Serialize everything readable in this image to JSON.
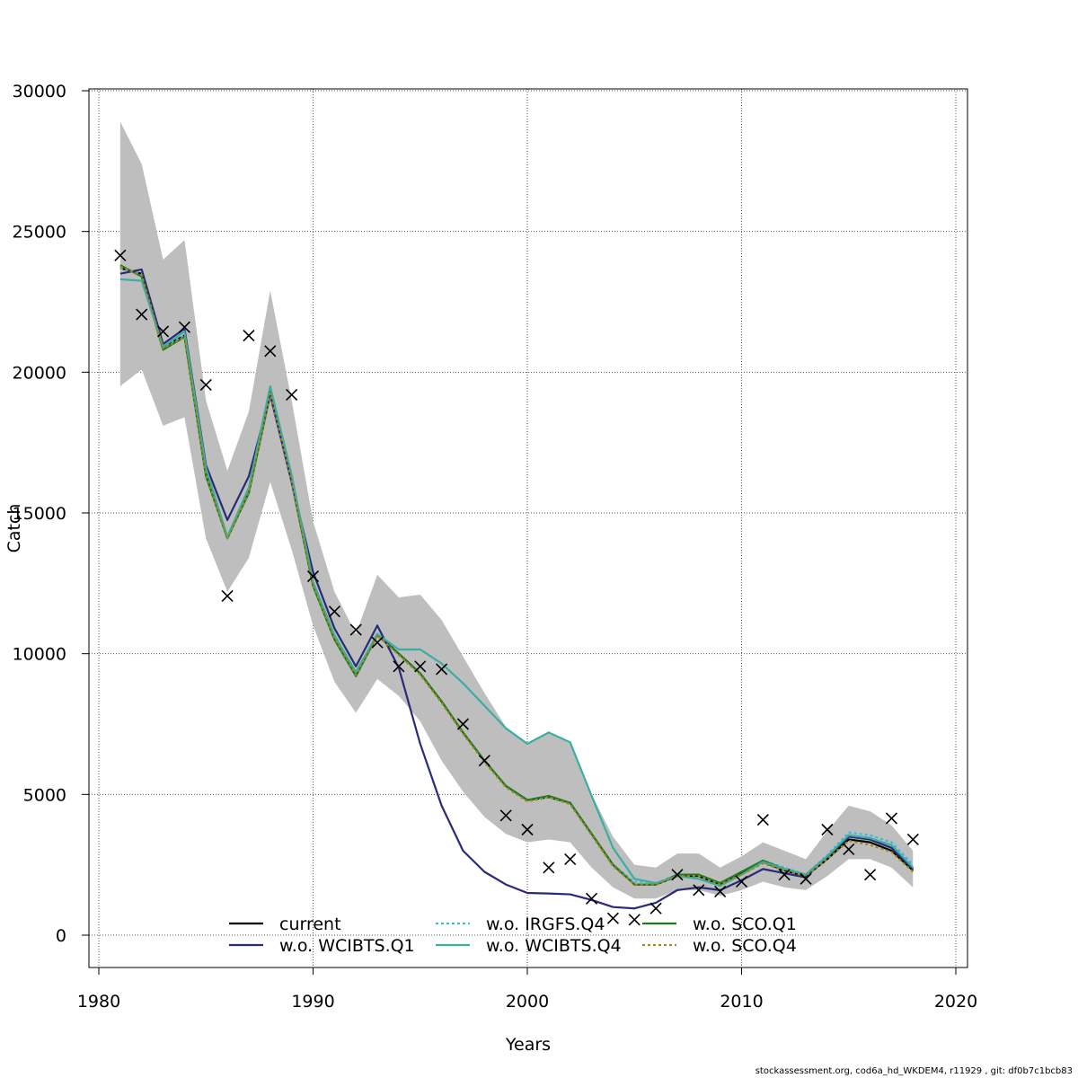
{
  "chart_data": {
    "type": "line",
    "xlabel": "Years",
    "ylabel": "Catch",
    "xlim": [
      1980,
      2020
    ],
    "ylim": [
      0,
      30000
    ],
    "xticks": [
      1980,
      1990,
      2000,
      2010,
      2020
    ],
    "yticks": [
      0,
      5000,
      10000,
      15000,
      20000,
      25000,
      30000
    ],
    "grid": true,
    "legend_position": "bottom",
    "x": [
      1981,
      1982,
      1983,
      1984,
      1985,
      1986,
      1987,
      1988,
      1989,
      1990,
      1991,
      1992,
      1993,
      1994,
      1995,
      1996,
      1997,
      1998,
      1999,
      2000,
      2001,
      2002,
      2003,
      2004,
      2005,
      2006,
      2007,
      2008,
      2009,
      2010,
      2011,
      2012,
      2013,
      2014,
      2015,
      2016,
      2017,
      2018
    ],
    "confidence_band": {
      "color": "#bebebe",
      "upper": [
        28900,
        27400,
        24000,
        24700,
        19000,
        16500,
        18600,
        22900,
        19000,
        14700,
        12200,
        10700,
        12800,
        12000,
        12100,
        11200,
        9900,
        8600,
        7400,
        6800,
        7200,
        6800,
        5000,
        3500,
        2500,
        2400,
        2900,
        2900,
        2400,
        2800,
        3300,
        3000,
        2700,
        3700,
        4600,
        4400,
        3900,
        3000
      ],
      "lower": [
        19500,
        20100,
        18100,
        18400,
        14100,
        12200,
        13400,
        16100,
        13700,
        11000,
        9000,
        7900,
        9100,
        8500,
        7600,
        6200,
        5100,
        4200,
        3600,
        3300,
        3400,
        3300,
        2400,
        1700,
        1300,
        1300,
        1600,
        1600,
        1400,
        1600,
        1900,
        1700,
        1600,
        2100,
        2700,
        2700,
        2400,
        1700
      ]
    },
    "observations": {
      "marker": "x",
      "x": [
        1981,
        1982,
        1983,
        1984,
        1985,
        1986,
        1987,
        1988,
        1989,
        1990,
        1991,
        1992,
        1993,
        1994,
        1995,
        1996,
        1997,
        1998,
        1999,
        2000,
        2001,
        2002,
        2003,
        2004,
        2005,
        2006,
        2007,
        2008,
        2009,
        2010,
        2011,
        2012,
        2013,
        2014,
        2015,
        2016,
        2017,
        2018
      ],
      "y": [
        24150,
        22050,
        21450,
        21600,
        19550,
        12050,
        21300,
        20750,
        19200,
        12750,
        11500,
        10850,
        10400,
        9550,
        9550,
        9450,
        7500,
        6200,
        4250,
        3750,
        2400,
        2700,
        1300,
        600,
        550,
        950,
        2150,
        1600,
        1550,
        1900,
        4100,
        2150,
        2000,
        3750,
        3050,
        2150,
        4150,
        3400
      ]
    },
    "series": [
      {
        "name": "current",
        "color": "#000000",
        "dash": "solid",
        "values": [
          23700,
          23500,
          20900,
          21300,
          16400,
          14100,
          15800,
          19300,
          16200,
          12500,
          10600,
          9300,
          10700,
          10000,
          9300,
          8300,
          7200,
          6200,
          5300,
          4800,
          4900,
          4700,
          3600,
          2500,
          1800,
          1800,
          2100,
          2100,
          1800,
          2200,
          2600,
          2300,
          2100,
          2700,
          3400,
          3300,
          3000,
          2300
        ]
      },
      {
        "name": "w.o. IRGFS.Q4",
        "color": "#41b6e6",
        "dash": "dotted",
        "values": [
          23700,
          23500,
          20900,
          21300,
          16400,
          14100,
          15800,
          19300,
          16200,
          12500,
          10600,
          9300,
          10700,
          10000,
          9300,
          8300,
          7200,
          6200,
          5300,
          4800,
          4900,
          4700,
          3600,
          2500,
          1900,
          1850,
          2150,
          2150,
          1850,
          2250,
          2650,
          2400,
          2150,
          2850,
          3650,
          3550,
          3300,
          2500
        ]
      },
      {
        "name": "w.o. SCO.Q1",
        "color": "#1f7a1f",
        "dash": "solid",
        "values": [
          23800,
          23400,
          20800,
          21250,
          16300,
          14100,
          15700,
          19200,
          16100,
          12400,
          10500,
          9200,
          10650,
          10000,
          9300,
          8300,
          7200,
          6200,
          5300,
          4800,
          4950,
          4700,
          3600,
          2500,
          1800,
          1800,
          2150,
          2150,
          1850,
          2250,
          2650,
          2350,
          2150,
          2800,
          3500,
          3400,
          3100,
          2350
        ]
      },
      {
        "name": "w.o. WCIBTS.Q1",
        "color": "#2a2a7a",
        "dash": "solid",
        "values": [
          23500,
          23650,
          21000,
          21550,
          16700,
          14750,
          16300,
          19200,
          16100,
          12900,
          10900,
          9550,
          11000,
          9500,
          6800,
          4600,
          3000,
          2250,
          1800,
          1500,
          1480,
          1450,
          1250,
          1000,
          950,
          1150,
          1600,
          1700,
          1600,
          1950,
          2350,
          2200,
          2050,
          2800,
          3500,
          3400,
          3100,
          2350
        ]
      },
      {
        "name": "w.o. WCIBTS.Q4",
        "color": "#3aaea0",
        "dash": "solid",
        "values": [
          23300,
          23250,
          20900,
          21450,
          16600,
          14150,
          15900,
          19500,
          16350,
          12550,
          10650,
          9350,
          10700,
          10150,
          10150,
          9650,
          8950,
          8150,
          7350,
          6800,
          7200,
          6850,
          4950,
          3100,
          2000,
          1850,
          2100,
          2000,
          1750,
          2150,
          2600,
          2350,
          2150,
          2800,
          3550,
          3450,
          3200,
          2400
        ]
      },
      {
        "name": "w.o. SCO.Q4",
        "color": "#a08a20",
        "dash": "dotted",
        "values": [
          23750,
          23450,
          20850,
          21250,
          16350,
          14100,
          15750,
          19250,
          16150,
          12450,
          10550,
          9250,
          10650,
          9950,
          9250,
          8250,
          7150,
          6150,
          5250,
          4750,
          4900,
          4650,
          3550,
          2450,
          1800,
          1800,
          2100,
          2100,
          1800,
          2150,
          2550,
          2300,
          2100,
          2700,
          3350,
          3200,
          2950,
          2250
        ]
      }
    ]
  },
  "legend": {
    "layout": [
      [
        "current",
        "w.o. IRGFS.Q4",
        "w.o. SCO.Q1"
      ],
      [
        "w.o. WCIBTS.Q1",
        "w.o. WCIBTS.Q4",
        "w.o. SCO.Q4"
      ]
    ]
  },
  "footer": {
    "text": "stockassessment.org, cod6a_hd_WKDEM4, r11929 , git: df0b7c1bcb83"
  }
}
